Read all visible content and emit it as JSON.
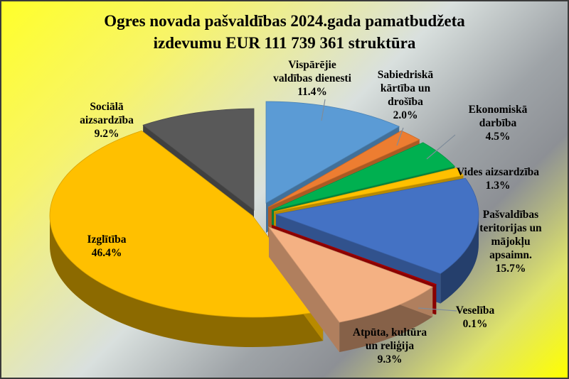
{
  "chart_data": {
    "type": "pie",
    "title": "Ogres novada pašvaldības  2024.gada pamatbudžeta",
    "subtitle": "izdevumu EUR 111 739 361 struktūra",
    "slices": [
      {
        "label": [
          "Vispārējie",
          "valdības dienesti"
        ],
        "value": 11.4,
        "value_label": "11.4%",
        "color": "#5b9bd5"
      },
      {
        "label": [
          "Sabiedriskā",
          "kārtība un",
          "drošība"
        ],
        "value": 2.0,
        "value_label": "2.0%",
        "color": "#ed7d31"
      },
      {
        "label": [
          "Ekonomiskā",
          "darbība"
        ],
        "value": 4.5,
        "value_label": "4.5%",
        "color": "#00b050"
      },
      {
        "label": [
          "Vides aizsardzība"
        ],
        "value": 1.3,
        "value_label": "1.3%",
        "color": "#ffc000"
      },
      {
        "label": [
          "Pašvaldības",
          "teritorijas un",
          "mājokļu",
          "apsaimn."
        ],
        "value": 15.7,
        "value_label": "15.7%",
        "color": "#4472c4"
      },
      {
        "label": [
          "Veselība"
        ],
        "value": 0.1,
        "value_label": "0.1%",
        "color": "#c00000"
      },
      {
        "label": [
          "Atpūta, kultūra",
          "un reliģija"
        ],
        "value": 9.3,
        "value_label": "9.3%",
        "color": "#f4b183"
      },
      {
        "label": [
          "Izglītība"
        ],
        "value": 46.4,
        "value_label": "46.4%",
        "color": "#ffc000"
      },
      {
        "label": [
          "Sociālā",
          "aizsardzība"
        ],
        "value": 9.2,
        "value_label": "9.2%",
        "color": "#595959"
      }
    ]
  }
}
